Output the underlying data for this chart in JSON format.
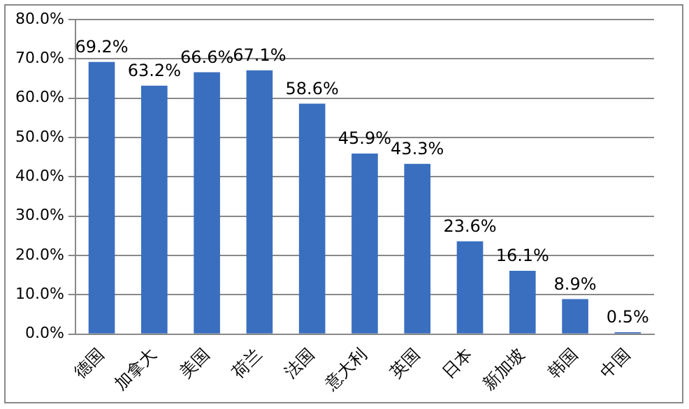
{
  "chart_data": {
    "type": "bar",
    "categories": [
      "德国",
      "加拿大",
      "美国",
      "荷兰",
      "法国",
      "意大利",
      "英国",
      "日本",
      "新加坡",
      "韩国",
      "中国"
    ],
    "values": [
      69.2,
      63.2,
      66.6,
      67.1,
      58.6,
      45.9,
      43.3,
      23.6,
      16.1,
      8.9,
      0.5
    ],
    "value_labels": [
      "69.2%",
      "63.2%",
      "66.6%",
      "67.1%",
      "58.6%",
      "45.9%",
      "43.3%",
      "23.6%",
      "16.1%",
      "8.9%",
      "0.5%"
    ],
    "color": "#3a6fbf",
    "ylim": [
      0,
      80
    ],
    "yticks": [
      {
        "value": 0,
        "label": "0.0%"
      },
      {
        "value": 10,
        "label": "10.0%"
      },
      {
        "value": 20,
        "label": "20.0%"
      },
      {
        "value": 30,
        "label": "30.0%"
      },
      {
        "value": 40,
        "label": "40.0%"
      },
      {
        "value": 50,
        "label": "50.0%"
      },
      {
        "value": 60,
        "label": "60.0%"
      },
      {
        "value": 70,
        "label": "70.0%"
      },
      {
        "value": 80,
        "label": "80.0%"
      }
    ],
    "grid": "y",
    "legend": false
  }
}
